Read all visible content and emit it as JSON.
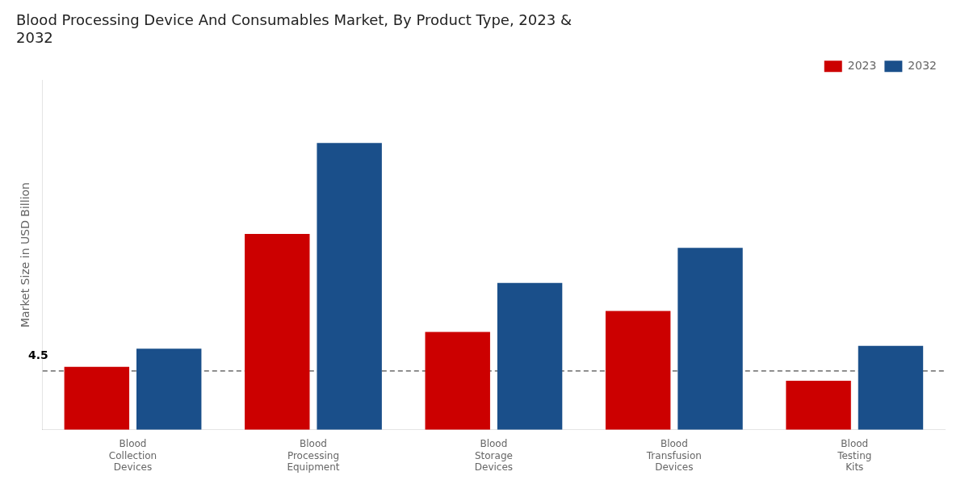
{
  "chart_data": {
    "type": "bar",
    "title": "Blood Processing Device And Consumables Market, By Product Type, 2023 &\n2032",
    "ylabel": "Market Size in USD Billion",
    "categories": [
      "Blood\nCollection\nDevices",
      "Blood\nProcessing\nEquipment",
      "Blood\nStorage\nDevices",
      "Blood\nTransfusion\nDevices",
      "Blood\nTesting\nKits"
    ],
    "series": [
      {
        "name": "2023",
        "color": "#cc0000",
        "values": [
          4.5,
          14.0,
          7.0,
          8.5,
          3.5
        ]
      },
      {
        "name": "2032",
        "color": "#1a4f8a",
        "values": [
          5.8,
          20.5,
          10.5,
          13.0,
          6.0
        ]
      }
    ],
    "ylim": [
      0,
      25
    ],
    "tick_labels": "x",
    "grid": false,
    "legend": "top",
    "annotations": [
      {
        "text": "4.5",
        "category": "Blood\nCollection\nDevices",
        "series": "2023"
      }
    ],
    "reference_lines": [
      {
        "y": 4.2,
        "line_style": "dashed",
        "color": "#000000"
      }
    ]
  }
}
